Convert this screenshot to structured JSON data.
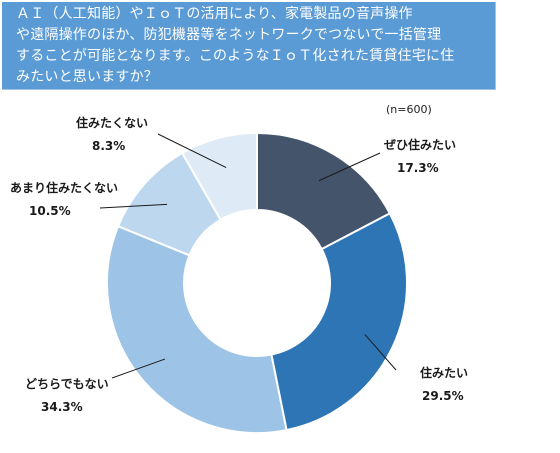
{
  "question": {
    "lines": [
      "ＡＩ（人工知能）やＩｏＴの活用により、家電製品の音声操作",
      "や遠隔操作のほか、防犯機器等をネットワークでつないで一括管理",
      "することが可能となります。このようなＩｏＴ化された賃貸住宅に住",
      "みたいと思いますか？"
    ]
  },
  "sample_size": "(n=600)",
  "chart_data": {
    "type": "pie",
    "donut": true,
    "title": "",
    "start_angle_deg": 0,
    "direction": "clockwise",
    "slices": [
      {
        "name": "ぜひ住みたい",
        "value": 17.3,
        "label": "17.3%",
        "color": "#44546a"
      },
      {
        "name": "住みたい",
        "value": 29.5,
        "label": "29.5%",
        "color": "#2e75b6"
      },
      {
        "name": "どちらでもない",
        "value": 34.3,
        "label": "34.3%",
        "color": "#9dc3e6"
      },
      {
        "name": "あまり住みたくない",
        "value": 10.5,
        "label": "10.5%",
        "color": "#bdd7ee"
      },
      {
        "name": "住みたくない",
        "value": 8.3,
        "label": "8.3%",
        "color": "#deebf7"
      }
    ]
  }
}
